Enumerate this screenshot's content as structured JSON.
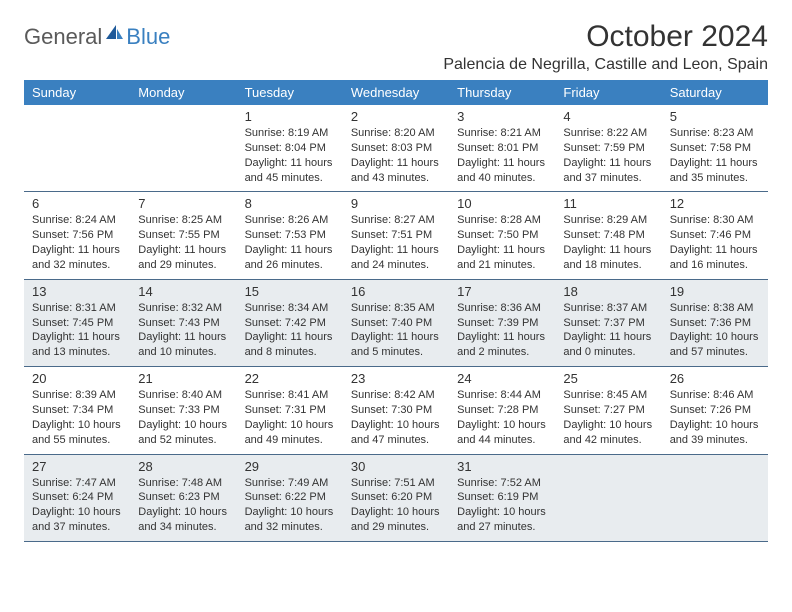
{
  "brand": {
    "general": "General",
    "blue": "Blue"
  },
  "title": "October 2024",
  "location": "Palencia de Negrilla, Castille and Leon, Spain",
  "colors": {
    "header_bg": "#3a80c0",
    "header_text": "#ffffff",
    "shaded_bg": "#e8ecef",
    "border": "#4a6a8a",
    "text": "#333333",
    "logo_gray": "#5a5a5a",
    "logo_blue": "#3a80c0"
  },
  "daynames": [
    "Sunday",
    "Monday",
    "Tuesday",
    "Wednesday",
    "Thursday",
    "Friday",
    "Saturday"
  ],
  "cells": [
    {
      "day": "",
      "lines": []
    },
    {
      "day": "",
      "lines": []
    },
    {
      "day": "1",
      "lines": [
        "Sunrise: 8:19 AM",
        "Sunset: 8:04 PM",
        "Daylight: 11 hours",
        "and 45 minutes."
      ]
    },
    {
      "day": "2",
      "lines": [
        "Sunrise: 8:20 AM",
        "Sunset: 8:03 PM",
        "Daylight: 11 hours",
        "and 43 minutes."
      ]
    },
    {
      "day": "3",
      "lines": [
        "Sunrise: 8:21 AM",
        "Sunset: 8:01 PM",
        "Daylight: 11 hours",
        "and 40 minutes."
      ]
    },
    {
      "day": "4",
      "lines": [
        "Sunrise: 8:22 AM",
        "Sunset: 7:59 PM",
        "Daylight: 11 hours",
        "and 37 minutes."
      ]
    },
    {
      "day": "5",
      "lines": [
        "Sunrise: 8:23 AM",
        "Sunset: 7:58 PM",
        "Daylight: 11 hours",
        "and 35 minutes."
      ]
    },
    {
      "day": "6",
      "lines": [
        "Sunrise: 8:24 AM",
        "Sunset: 7:56 PM",
        "Daylight: 11 hours",
        "and 32 minutes."
      ]
    },
    {
      "day": "7",
      "lines": [
        "Sunrise: 8:25 AM",
        "Sunset: 7:55 PM",
        "Daylight: 11 hours",
        "and 29 minutes."
      ]
    },
    {
      "day": "8",
      "lines": [
        "Sunrise: 8:26 AM",
        "Sunset: 7:53 PM",
        "Daylight: 11 hours",
        "and 26 minutes."
      ]
    },
    {
      "day": "9",
      "lines": [
        "Sunrise: 8:27 AM",
        "Sunset: 7:51 PM",
        "Daylight: 11 hours",
        "and 24 minutes."
      ]
    },
    {
      "day": "10",
      "lines": [
        "Sunrise: 8:28 AM",
        "Sunset: 7:50 PM",
        "Daylight: 11 hours",
        "and 21 minutes."
      ]
    },
    {
      "day": "11",
      "lines": [
        "Sunrise: 8:29 AM",
        "Sunset: 7:48 PM",
        "Daylight: 11 hours",
        "and 18 minutes."
      ]
    },
    {
      "day": "12",
      "lines": [
        "Sunrise: 8:30 AM",
        "Sunset: 7:46 PM",
        "Daylight: 11 hours",
        "and 16 minutes."
      ]
    },
    {
      "day": "13",
      "lines": [
        "Sunrise: 8:31 AM",
        "Sunset: 7:45 PM",
        "Daylight: 11 hours",
        "and 13 minutes."
      ]
    },
    {
      "day": "14",
      "lines": [
        "Sunrise: 8:32 AM",
        "Sunset: 7:43 PM",
        "Daylight: 11 hours",
        "and 10 minutes."
      ]
    },
    {
      "day": "15",
      "lines": [
        "Sunrise: 8:34 AM",
        "Sunset: 7:42 PM",
        "Daylight: 11 hours",
        "and 8 minutes."
      ]
    },
    {
      "day": "16",
      "lines": [
        "Sunrise: 8:35 AM",
        "Sunset: 7:40 PM",
        "Daylight: 11 hours",
        "and 5 minutes."
      ]
    },
    {
      "day": "17",
      "lines": [
        "Sunrise: 8:36 AM",
        "Sunset: 7:39 PM",
        "Daylight: 11 hours",
        "and 2 minutes."
      ]
    },
    {
      "day": "18",
      "lines": [
        "Sunrise: 8:37 AM",
        "Sunset: 7:37 PM",
        "Daylight: 11 hours",
        "and 0 minutes."
      ]
    },
    {
      "day": "19",
      "lines": [
        "Sunrise: 8:38 AM",
        "Sunset: 7:36 PM",
        "Daylight: 10 hours",
        "and 57 minutes."
      ]
    },
    {
      "day": "20",
      "lines": [
        "Sunrise: 8:39 AM",
        "Sunset: 7:34 PM",
        "Daylight: 10 hours",
        "and 55 minutes."
      ]
    },
    {
      "day": "21",
      "lines": [
        "Sunrise: 8:40 AM",
        "Sunset: 7:33 PM",
        "Daylight: 10 hours",
        "and 52 minutes."
      ]
    },
    {
      "day": "22",
      "lines": [
        "Sunrise: 8:41 AM",
        "Sunset: 7:31 PM",
        "Daylight: 10 hours",
        "and 49 minutes."
      ]
    },
    {
      "day": "23",
      "lines": [
        "Sunrise: 8:42 AM",
        "Sunset: 7:30 PM",
        "Daylight: 10 hours",
        "and 47 minutes."
      ]
    },
    {
      "day": "24",
      "lines": [
        "Sunrise: 8:44 AM",
        "Sunset: 7:28 PM",
        "Daylight: 10 hours",
        "and 44 minutes."
      ]
    },
    {
      "day": "25",
      "lines": [
        "Sunrise: 8:45 AM",
        "Sunset: 7:27 PM",
        "Daylight: 10 hours",
        "and 42 minutes."
      ]
    },
    {
      "day": "26",
      "lines": [
        "Sunrise: 8:46 AM",
        "Sunset: 7:26 PM",
        "Daylight: 10 hours",
        "and 39 minutes."
      ]
    },
    {
      "day": "27",
      "lines": [
        "Sunrise: 7:47 AM",
        "Sunset: 6:24 PM",
        "Daylight: 10 hours",
        "and 37 minutes."
      ]
    },
    {
      "day": "28",
      "lines": [
        "Sunrise: 7:48 AM",
        "Sunset: 6:23 PM",
        "Daylight: 10 hours",
        "and 34 minutes."
      ]
    },
    {
      "day": "29",
      "lines": [
        "Sunrise: 7:49 AM",
        "Sunset: 6:22 PM",
        "Daylight: 10 hours",
        "and 32 minutes."
      ]
    },
    {
      "day": "30",
      "lines": [
        "Sunrise: 7:51 AM",
        "Sunset: 6:20 PM",
        "Daylight: 10 hours",
        "and 29 minutes."
      ]
    },
    {
      "day": "31",
      "lines": [
        "Sunrise: 7:52 AM",
        "Sunset: 6:19 PM",
        "Daylight: 10 hours",
        "and 27 minutes."
      ]
    },
    {
      "day": "",
      "lines": []
    },
    {
      "day": "",
      "lines": []
    }
  ],
  "shaded_rows": [
    2,
    4
  ]
}
